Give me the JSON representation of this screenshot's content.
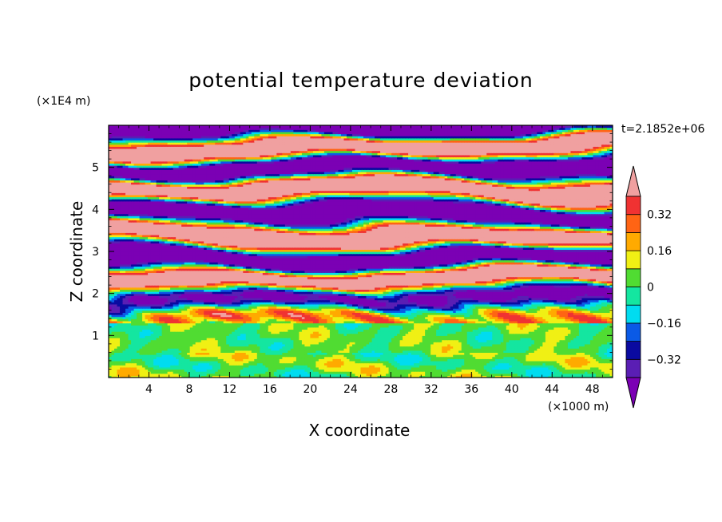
{
  "chart_data": {
    "type": "heatmap",
    "title": "potential temperature deviation",
    "xlabel": "X coordinate",
    "ylabel": "Z coordinate",
    "x_unit_label": "(×1000 m)",
    "y_unit_label": "(×1E4 m)",
    "time_label": "t=2.1852e+06",
    "x_ticks": [
      4,
      8,
      12,
      16,
      20,
      24,
      28,
      32,
      36,
      40,
      44,
      48
    ],
    "y_ticks": [
      1,
      2,
      3,
      4,
      5
    ],
    "xlim": [
      0,
      50
    ],
    "ylim": [
      0,
      6
    ],
    "colorbar": {
      "levels": [
        -0.4,
        -0.32,
        -0.24,
        -0.16,
        -0.08,
        0,
        0.08,
        0.16,
        0.24,
        0.32,
        0.4
      ],
      "tick_labels": [
        "0.32",
        "0.16",
        "0",
        "−0.16",
        "−0.32"
      ],
      "tick_values": [
        0.32,
        0.16,
        0,
        -0.16,
        -0.32
      ],
      "colors": [
        "#7b00b4",
        "#5a1eb4",
        "#0a0aa0",
        "#0a5ae6",
        "#00dcf0",
        "#14e6a0",
        "#50dc32",
        "#f0f014",
        "#ffaa00",
        "#ff6414",
        "#f03232",
        "#f0a0a0"
      ],
      "extend": "both"
    }
  }
}
